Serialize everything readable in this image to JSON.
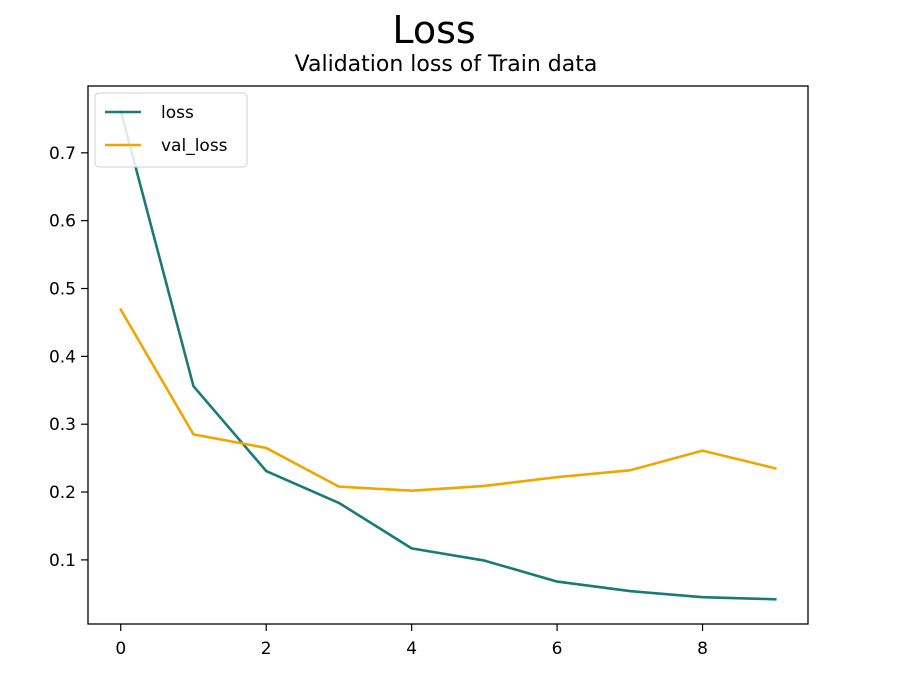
{
  "figure": {
    "suptitle": "Loss",
    "title": "Validation loss of Train data"
  },
  "chart_data": {
    "type": "line",
    "title": "Validation loss of Train data",
    "suptitle": "Loss",
    "xlabel": "",
    "ylabel": "",
    "x": [
      0,
      1,
      2,
      3,
      4,
      5,
      6,
      7,
      8,
      9
    ],
    "series": [
      {
        "name": "loss",
        "color": "#1a7a7a",
        "values": [
          0.762,
          0.356,
          0.231,
          0.184,
          0.117,
          0.099,
          0.068,
          0.054,
          0.045,
          0.042
        ]
      },
      {
        "name": "val_loss",
        "color": "#f0a500",
        "values": [
          0.469,
          0.285,
          0.265,
          0.208,
          0.202,
          0.209,
          0.222,
          0.232,
          0.261,
          0.235
        ]
      }
    ],
    "xlim": [
      -0.45,
      9.45
    ],
    "ylim": [
      0.0055,
      0.7985
    ],
    "xticks": [
      0,
      2,
      4,
      6,
      8
    ],
    "xtick_labels": [
      "0",
      "2",
      "4",
      "6",
      "8"
    ],
    "yticks": [
      0.1,
      0.2,
      0.3,
      0.4,
      0.5,
      0.6,
      0.7
    ],
    "ytick_labels": [
      "0.1",
      "0.2",
      "0.3",
      "0.4",
      "0.5",
      "0.6",
      "0.7"
    ],
    "legend": {
      "placement": "upper left",
      "labels": [
        "loss",
        "val_loss"
      ]
    },
    "grid": false
  }
}
